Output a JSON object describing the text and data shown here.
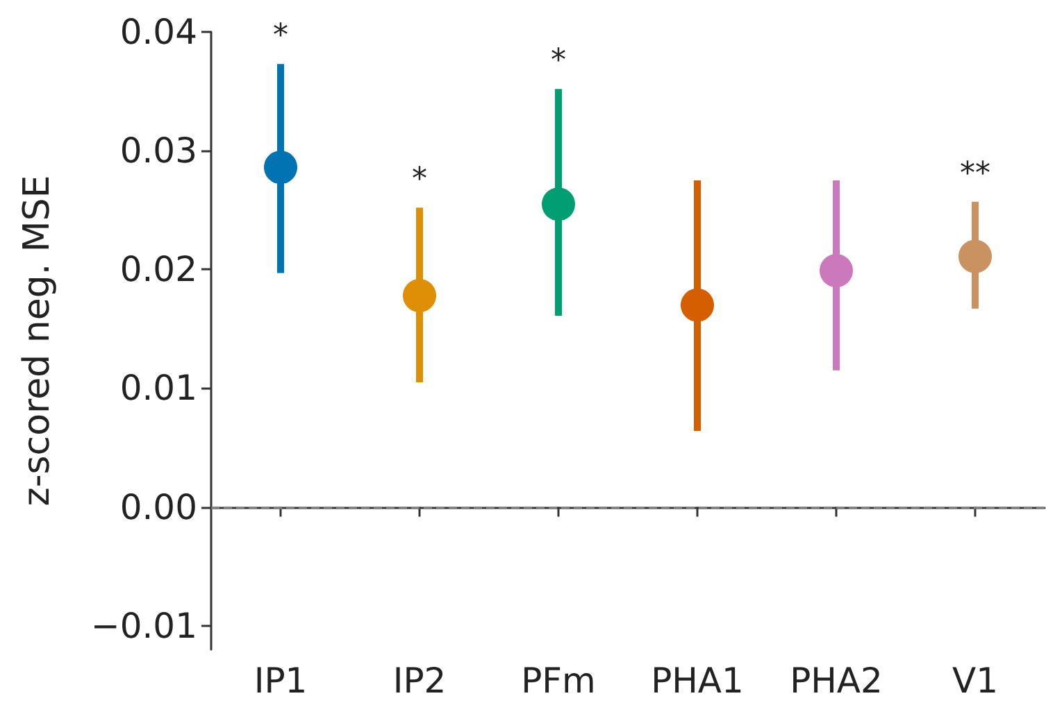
{
  "chart_data": {
    "type": "scatter",
    "ylabel": "z-scored neg. MSE",
    "categories": [
      "IP1",
      "IP2",
      "PFm",
      "PHA1",
      "PHA2",
      "V1"
    ],
    "values": [
      0.0286,
      0.0178,
      0.0255,
      0.017,
      0.0199,
      0.0211
    ],
    "colors": [
      "#0173b2",
      "#de8f05",
      "#029e73",
      "#d55e00",
      "#cc78bc",
      "#ca9161"
    ],
    "errors": [
      [
        0.0197,
        0.0373
      ],
      [
        0.0105,
        0.0252
      ],
      [
        0.0161,
        0.0352
      ],
      [
        0.0064,
        0.0275
      ],
      [
        0.0115,
        0.0275
      ],
      [
        0.0167,
        0.0257
      ]
    ],
    "ylim": [
      -0.012,
      0.04
    ],
    "yticks": [
      {
        "value": -0.01,
        "label": "−0.01"
      },
      {
        "value": 0,
        "label": "0.00"
      },
      {
        "value": 0.01,
        "label": "0.01"
      },
      {
        "value": 0.02,
        "label": "0.02"
      },
      {
        "value": 0.03,
        "label": "0.03"
      },
      {
        "value": 0.04,
        "label": "0.04"
      }
    ],
    "ref_lines": [
      {
        "axis": "y",
        "value": 0,
        "color": "#808080",
        "line_style": "dashed"
      }
    ],
    "annotations": [
      {
        "text": "*",
        "x": "IP1",
        "y": 0.0373
      },
      {
        "text": "*",
        "x": "IP2",
        "y": 0.0252
      },
      {
        "text": "*",
        "x": "PFm",
        "y": 0.0352
      },
      {
        "text": "**",
        "x": "V1",
        "y": 0.0257
      }
    ],
    "marker": "circle",
    "grid": false
  }
}
